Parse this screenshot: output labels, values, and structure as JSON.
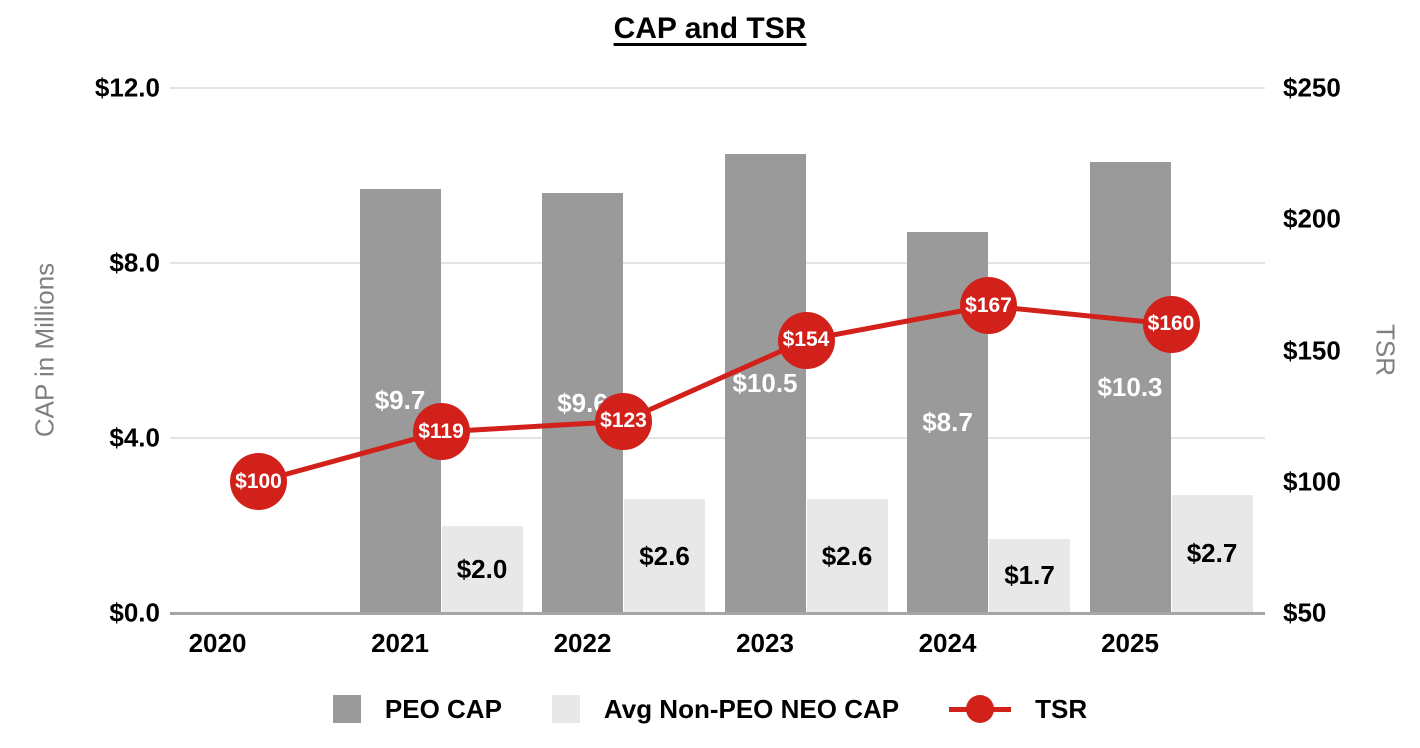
{
  "chart_data": {
    "type": "bar+line-combo",
    "title": "CAP and TSR",
    "categories": [
      "2020",
      "2021",
      "2022",
      "2023",
      "2024",
      "2025"
    ],
    "series": [
      {
        "name": "PEO CAP",
        "type": "bar",
        "axis": "left",
        "color": "#9a9a9a",
        "label_color": "#ffffff",
        "values": [
          null,
          9.7,
          9.6,
          10.5,
          8.7,
          10.3
        ],
        "labels": [
          "",
          "$9.7",
          "$9.6",
          "$10.5",
          "$8.7",
          "$10.3"
        ]
      },
      {
        "name": "Avg Non-PEO NEO CAP",
        "type": "bar",
        "axis": "left",
        "color": "#e8e8e8",
        "label_color": "#000000",
        "values": [
          null,
          2.0,
          2.6,
          2.6,
          1.7,
          2.7
        ],
        "labels": [
          "",
          "$2.0",
          "$2.6",
          "$2.6",
          "$1.7",
          "$2.7"
        ]
      },
      {
        "name": "TSR",
        "type": "line",
        "axis": "right",
        "color": "#d2201a",
        "label_color": "#ffffff",
        "values": [
          100,
          119,
          123,
          154,
          167,
          160
        ],
        "labels": [
          "$100",
          "$119",
          "$123",
          "$154",
          "$167",
          "$160"
        ]
      }
    ],
    "left_axis": {
      "title": "CAP in Millions",
      "min": 0,
      "max": 12,
      "ticks": [
        0,
        4,
        8,
        12
      ],
      "tick_labels": [
        "$0.0",
        "$4.0",
        "$8.0",
        "$12.0"
      ]
    },
    "right_axis": {
      "title": "TSR",
      "min": 50,
      "max": 250,
      "ticks": [
        50,
        100,
        150,
        200,
        250
      ],
      "tick_labels": [
        "$50",
        "$100",
        "$150",
        "$200",
        "$250"
      ]
    },
    "grid": true,
    "legend_position": "bottom",
    "style": {
      "gridline_color": "#e4e4e4",
      "axis_line_color": "#a6a6a6",
      "tick_label_color": "#000000",
      "axis_title_color": "#7f7f7f",
      "title_color": "#000000"
    }
  }
}
